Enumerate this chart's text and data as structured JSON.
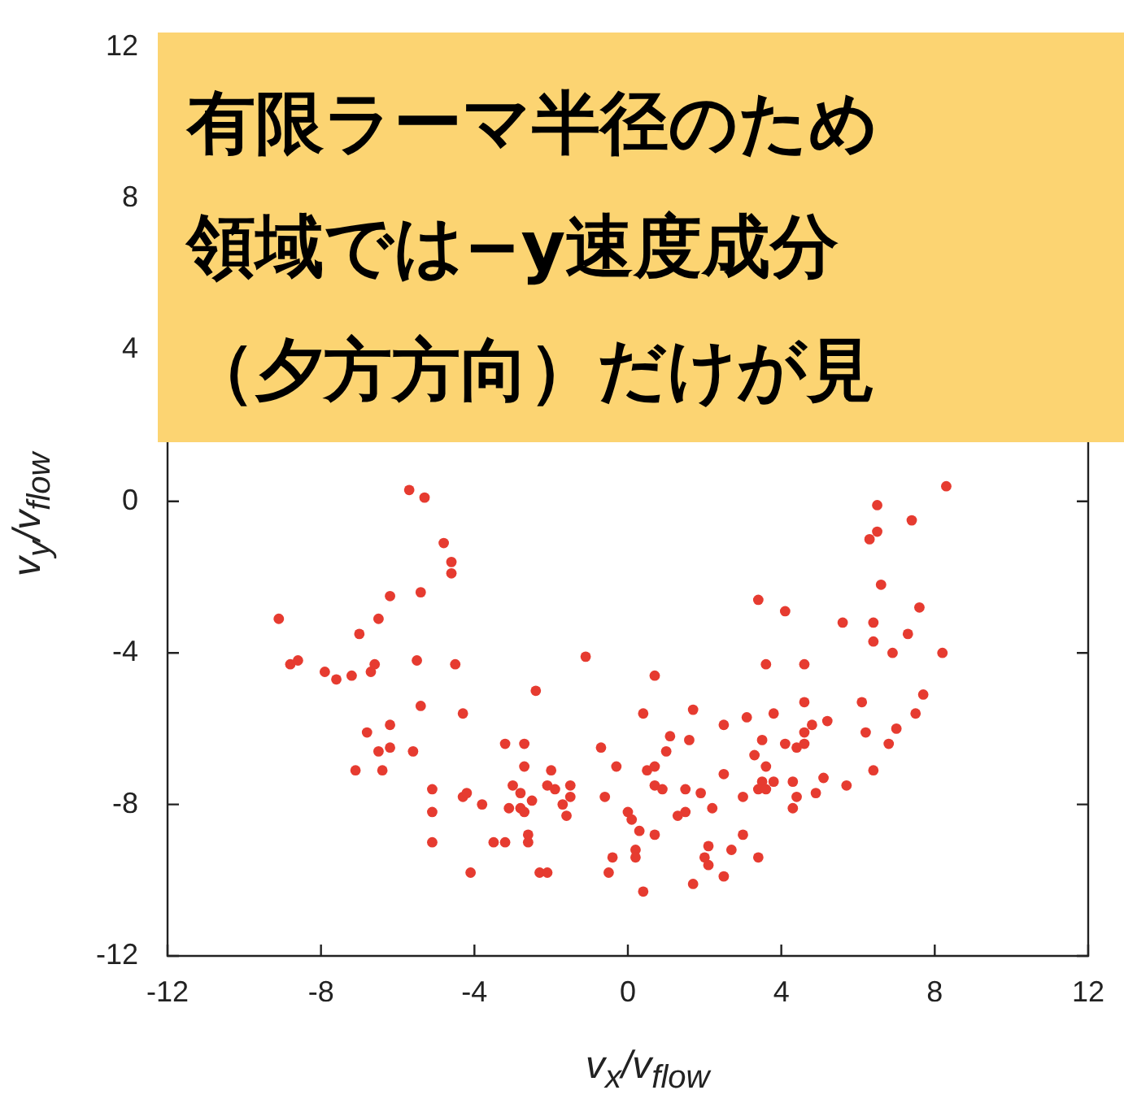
{
  "chart_data": {
    "type": "scatter",
    "xlabel": "v$_{x}$/v$_{flow}$",
    "ylabel": "v$_{y}$/v$_{flow}$",
    "annotations": [
      "有限ラーマ半径のため",
      "領域では−y速度成分",
      "（夕方方向）だけが見"
    ],
    "xlim": [
      -12,
      12
    ],
    "xticks": [
      -12,
      -8,
      -4,
      0,
      4,
      8,
      12
    ],
    "ylim": [
      -12,
      12
    ],
    "yticks": [
      -12,
      -8,
      -4,
      0,
      4,
      8,
      12
    ],
    "grid": false,
    "legend": false,
    "marker": "circle",
    "series": [
      {
        "color": "#e63b30",
        "x": [
          -5.7,
          -5.3,
          -4.8,
          -4.6,
          -4.6,
          -6.2,
          -5.4,
          -9.1,
          -6.5,
          -7.0,
          -8.8,
          -8.6,
          -7.9,
          -7.6,
          -7.2,
          -6.7,
          -6.6,
          -5.5,
          -4.5,
          -5.4,
          -4.3,
          -6.8,
          -6.2,
          -6.5,
          -6.2,
          -5.6,
          -7.1,
          -6.4,
          -5.1,
          -4.3,
          -4.2,
          -3.8,
          -5.1,
          -5.1,
          -3.5,
          -4.1,
          -1.1,
          0.7,
          -2.4,
          1.7,
          0.4,
          -3.2,
          -2.7,
          -0.7,
          1.1,
          1.6,
          1.0,
          -2.7,
          -2.0,
          -0.3,
          0.5,
          0.7,
          -3.0,
          -2.1,
          -1.9,
          -1.5,
          0.7,
          0.9,
          1.5,
          1.9,
          -2.8,
          -2.5,
          -1.5,
          -1.7,
          -0.6,
          -3.1,
          -2.8,
          -2.7,
          -1.6,
          0.0,
          0.1,
          0.3,
          0.7,
          1.5,
          1.3,
          2.2,
          -3.2,
          -2.6,
          -2.6,
          0.2,
          0.2,
          -0.4,
          -0.5,
          -2.3,
          -2.1,
          2.0,
          2.1,
          2.1,
          1.7,
          0.4,
          8.3,
          6.5,
          7.4,
          6.5,
          6.3,
          6.6,
          3.4,
          4.1,
          7.6,
          5.6,
          6.4,
          7.3,
          6.4,
          6.9,
          8.2,
          3.6,
          4.6,
          4.6,
          7.7,
          6.1,
          7.5,
          2.5,
          3.1,
          3.8,
          4.8,
          5.2,
          4.6,
          3.5,
          4.1,
          4.4,
          4.6,
          6.2,
          7.0,
          6.8,
          3.3,
          3.6,
          2.5,
          6.4,
          3.5,
          3.8,
          3.4,
          3.6,
          4.3,
          5.1,
          5.7,
          4.4,
          4.9,
          4.3,
          3.0,
          3.0,
          2.7,
          3.4,
          2.5
        ],
        "values": [
          0.3,
          0.1,
          -1.1,
          -1.6,
          -1.9,
          -2.5,
          -2.4,
          -3.1,
          -3.1,
          -3.5,
          -4.3,
          -4.2,
          -4.5,
          -4.7,
          -4.6,
          -4.5,
          -4.3,
          -4.2,
          -4.3,
          -5.4,
          -5.6,
          -6.1,
          -5.9,
          -6.6,
          -6.5,
          -6.6,
          -7.1,
          -7.1,
          -7.6,
          -7.8,
          -7.7,
          -8.0,
          -8.2,
          -9.0,
          -9.0,
          -9.8,
          -4.1,
          -4.6,
          -5.0,
          -5.5,
          -5.6,
          -6.4,
          -6.4,
          -6.5,
          -6.2,
          -6.3,
          -6.6,
          -7.0,
          -7.1,
          -7.0,
          -7.1,
          -7.0,
          -7.5,
          -7.5,
          -7.6,
          -7.5,
          -7.5,
          -7.6,
          -7.6,
          -7.7,
          -7.7,
          -7.9,
          -7.8,
          -8.0,
          -7.8,
          -8.1,
          -8.1,
          -8.2,
          -8.3,
          -8.2,
          -8.4,
          -8.7,
          -8.8,
          -8.2,
          -8.3,
          -8.1,
          -9.0,
          -8.8,
          -9.0,
          -9.2,
          -9.4,
          -9.4,
          -9.8,
          -9.8,
          -9.8,
          -9.4,
          -9.1,
          -9.6,
          -10.1,
          -10.3,
          0.4,
          -0.1,
          -0.5,
          -0.8,
          -1.0,
          -2.2,
          -2.6,
          -2.9,
          -2.8,
          -3.2,
          -3.2,
          -3.5,
          -3.7,
          -4.0,
          -4.0,
          -4.3,
          -4.3,
          -5.3,
          -5.1,
          -5.3,
          -5.6,
          -5.9,
          -5.7,
          -5.6,
          -5.9,
          -5.8,
          -6.1,
          -6.3,
          -6.4,
          -6.5,
          -6.4,
          -6.1,
          -6.0,
          -6.4,
          -6.7,
          -7.0,
          -7.2,
          -7.1,
          -7.4,
          -7.4,
          -7.6,
          -7.6,
          -7.4,
          -7.3,
          -7.5,
          -7.8,
          -7.7,
          -8.1,
          -7.8,
          -8.8,
          -9.2,
          -9.4,
          -9.9
        ]
      }
    ]
  }
}
